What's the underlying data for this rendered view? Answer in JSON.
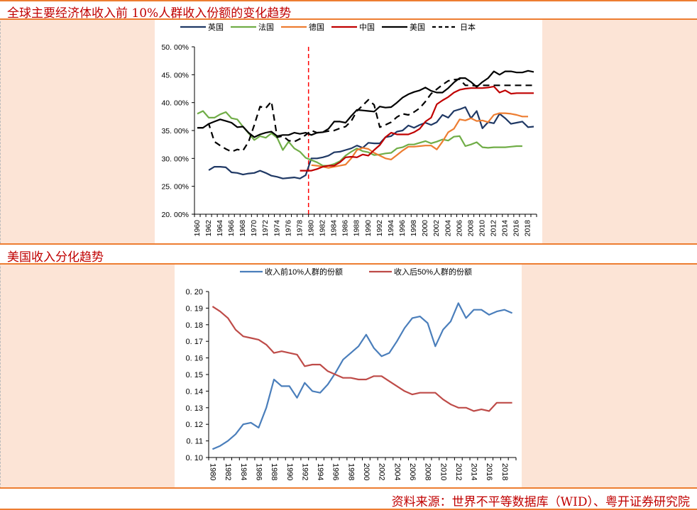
{
  "section1": {
    "title": "全球主要经济体收入前 10%人群收入份额的变化趋势"
  },
  "section2": {
    "title": "美国收入分化趋势"
  },
  "footer": {
    "source": "资料来源：世界不平等数据库（WID）、粤开证券研究院"
  },
  "chart_data": [
    {
      "type": "line",
      "title": "全球主要经济体收入前 10%人群收入份额的变化趋势",
      "xlabel": "",
      "ylabel": "",
      "ylim": [
        0.2,
        0.5
      ],
      "yticks": [
        "20. 00%",
        "25. 00%",
        "30. 00%",
        "35. 00%",
        "40. 00%",
        "45. 00%",
        "50. 00%"
      ],
      "xticks": [
        "1960",
        "1962",
        "1964",
        "1966",
        "1968",
        "1970",
        "1972",
        "1974",
        "1976",
        "1978",
        "1980",
        "1982",
        "1984",
        "1986",
        "1988",
        "1990",
        "1992",
        "1994",
        "1996",
        "1998",
        "2000",
        "2002",
        "2004",
        "2006",
        "2008",
        "2010",
        "2012",
        "2014",
        "2016",
        "2018"
      ],
      "x_start": 1960,
      "x_end": 2019,
      "marker_line_year": 1979.5,
      "legend_position": "top",
      "series": [
        {
          "name": "英国",
          "color": "#1f3864",
          "dash": false,
          "start": 1962,
          "values": [
            0.279,
            0.285,
            0.285,
            0.284,
            0.275,
            0.274,
            0.271,
            0.273,
            0.274,
            0.278,
            0.274,
            0.269,
            0.267,
            0.264,
            0.265,
            0.266,
            0.264,
            0.27,
            0.3,
            0.3,
            0.302,
            0.305,
            0.311,
            0.312,
            0.315,
            0.318,
            0.323,
            0.319,
            0.328,
            0.327,
            0.327,
            0.338,
            0.34,
            0.348,
            0.35,
            0.359,
            0.355,
            0.36,
            0.364,
            0.36,
            0.365,
            0.378,
            0.373,
            0.385,
            0.388,
            0.392,
            0.372,
            0.385,
            0.354,
            0.365,
            0.363,
            0.38,
            0.372,
            0.362,
            0.364,
            0.366,
            0.356,
            0.357
          ]
        },
        {
          "name": "法国",
          "color": "#70ad47",
          "dash": false,
          "start": 1960,
          "values": [
            0.38,
            0.385,
            0.373,
            0.373,
            0.379,
            0.383,
            0.372,
            0.37,
            0.357,
            0.345,
            0.333,
            0.34,
            0.337,
            0.345,
            0.337,
            0.315,
            0.33,
            0.318,
            0.312,
            0.301,
            0.297,
            0.293,
            0.287,
            0.287,
            0.29,
            0.295,
            0.305,
            0.312,
            0.318,
            0.313,
            0.311,
            0.306,
            0.307,
            0.309,
            0.31,
            0.318,
            0.32,
            0.325,
            0.325,
            0.328,
            0.331,
            0.327,
            0.33,
            0.334,
            0.332,
            0.339,
            0.34,
            0.322,
            0.325,
            0.329,
            0.32,
            0.319,
            0.32,
            0.32,
            0.32,
            0.321,
            0.322,
            0.322
          ]
        },
        {
          "name": "德国",
          "color": "#ed7d31",
          "dash": false,
          "start": 1980,
          "values": [
            0.288,
            0.287,
            0.285,
            0.283,
            0.285,
            0.287,
            0.289,
            0.3,
            0.315,
            0.319,
            0.317,
            0.31,
            0.305,
            0.3,
            0.298,
            0.306,
            0.314,
            0.321,
            0.321,
            0.322,
            0.323,
            0.323,
            0.316,
            0.33,
            0.347,
            0.353,
            0.37,
            0.368,
            0.372,
            0.367,
            0.368,
            0.365,
            0.378,
            0.381,
            0.381,
            0.38,
            0.378,
            0.375,
            0.375
          ]
        },
        {
          "name": "中国",
          "color": "#c00000",
          "dash": false,
          "start": 1978,
          "values": [
            0.278,
            0.278,
            0.278,
            0.281,
            0.285,
            0.287,
            0.287,
            0.293,
            0.302,
            0.303,
            0.302,
            0.307,
            0.305,
            0.315,
            0.324,
            0.338,
            0.346,
            0.343,
            0.343,
            0.343,
            0.347,
            0.353,
            0.366,
            0.373,
            0.397,
            0.404,
            0.41,
            0.418,
            0.423,
            0.425,
            0.426,
            0.426,
            0.426,
            0.427,
            0.429,
            0.418,
            0.422,
            0.416,
            0.417,
            0.417,
            0.417,
            0.417
          ]
        },
        {
          "name": "美国",
          "color": "#000000",
          "dash": false,
          "start": 1960,
          "values": [
            0.355,
            0.355,
            0.362,
            0.366,
            0.37,
            0.367,
            0.364,
            0.356,
            0.357,
            0.346,
            0.338,
            0.343,
            0.346,
            0.348,
            0.34,
            0.342,
            0.342,
            0.346,
            0.344,
            0.346,
            0.342,
            0.346,
            0.347,
            0.353,
            0.366,
            0.366,
            0.364,
            0.376,
            0.387,
            0.386,
            0.385,
            0.384,
            0.393,
            0.391,
            0.392,
            0.4,
            0.409,
            0.415,
            0.419,
            0.422,
            0.427,
            0.421,
            0.418,
            0.418,
            0.426,
            0.436,
            0.444,
            0.444,
            0.437,
            0.428,
            0.437,
            0.444,
            0.456,
            0.45,
            0.456,
            0.456,
            0.454,
            0.454,
            0.457,
            0.455
          ]
        },
        {
          "name": "日本",
          "color": "#000000",
          "dash": true,
          "start": 1960,
          "values": [
            0.355,
            0.355,
            0.362,
            0.33,
            0.323,
            0.317,
            0.312,
            0.316,
            0.314,
            0.33,
            0.36,
            0.393,
            0.39,
            0.402,
            0.338,
            0.34,
            0.332,
            0.33,
            0.335,
            0.342,
            0.35,
            0.346,
            0.347,
            0.349,
            0.35,
            0.354,
            0.357,
            0.367,
            0.385,
            0.395,
            0.405,
            0.396,
            0.356,
            0.36,
            0.365,
            0.374,
            0.38,
            0.378,
            0.383,
            0.39,
            0.402,
            0.416,
            0.424,
            0.432,
            0.439,
            0.441,
            0.442,
            0.431,
            0.431,
            0.43,
            0.431,
            0.431,
            0.431,
            0.431,
            0.431,
            0.431,
            0.431,
            0.431,
            0.431,
            0.431
          ]
        }
      ]
    },
    {
      "type": "line",
      "title": "美国收入分化趋势",
      "xlabel": "",
      "ylabel": "",
      "ylim": [
        0.1,
        0.2
      ],
      "yticks": [
        "0. 10",
        "0. 11",
        "0. 12",
        "0. 13",
        "0. 14",
        "0. 15",
        "0. 16",
        "0. 17",
        "0. 18",
        "0. 19",
        "0. 20"
      ],
      "xticks": [
        "1980",
        "1982",
        "1984",
        "1986",
        "1988",
        "1990",
        "1992",
        "1994",
        "1996",
        "1998",
        "2000",
        "2002",
        "2004",
        "2006",
        "2008",
        "2010",
        "2012",
        "2014",
        "2016",
        "2018"
      ],
      "x_start": 1980,
      "x_end": 2019,
      "legend_position": "top",
      "series": [
        {
          "name": "收入前10%人群的份额",
          "color": "#4a7ebb",
          "start": 1980,
          "values": [
            0.105,
            0.107,
            0.11,
            0.114,
            0.12,
            0.121,
            0.118,
            0.13,
            0.147,
            0.143,
            0.143,
            0.136,
            0.145,
            0.14,
            0.139,
            0.144,
            0.151,
            0.159,
            0.163,
            0.167,
            0.174,
            0.166,
            0.161,
            0.163,
            0.17,
            0.178,
            0.184,
            0.185,
            0.181,
            0.167,
            0.177,
            0.182,
            0.193,
            0.184,
            0.189,
            0.189,
            0.186,
            0.188,
            0.189,
            0.187
          ]
        },
        {
          "name": "收入后50%人群的份额",
          "color": "#be4b48",
          "start": 1980,
          "values": [
            0.191,
            0.188,
            0.184,
            0.177,
            0.173,
            0.172,
            0.171,
            0.168,
            0.163,
            0.164,
            0.163,
            0.162,
            0.155,
            0.156,
            0.156,
            0.152,
            0.15,
            0.148,
            0.148,
            0.147,
            0.147,
            0.149,
            0.149,
            0.146,
            0.143,
            0.14,
            0.138,
            0.139,
            0.139,
            0.139,
            0.135,
            0.132,
            0.13,
            0.13,
            0.128,
            0.129,
            0.128,
            0.133,
            0.133,
            0.133
          ]
        }
      ]
    }
  ]
}
